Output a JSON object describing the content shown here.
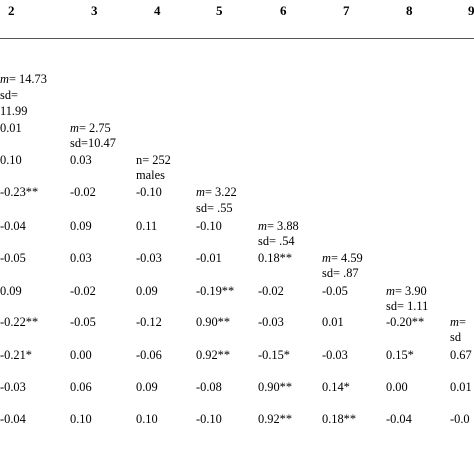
{
  "header": {
    "col2": "2",
    "col3": "3",
    "col4": "4",
    "col5": "5",
    "col6": "6",
    "col7": "7",
    "col8": "8",
    "col9": "9"
  },
  "cells": {
    "r1": {
      "c2_m_label": "m",
      "c2_m_val": "= 14.73",
      "c2_sd_label": "sd=",
      "c2_sd_val": "11.99"
    },
    "r2": {
      "c2": "0.01",
      "c3_m_label": "m",
      "c3_m_val": "= 2.75",
      "c3_sd": "sd=10.47"
    },
    "r3": {
      "c2": "0.10",
      "c3": "0.03",
      "c4_line1": "n= 252",
      "c4_line2": "males"
    },
    "r4": {
      "c2": "-0.23**",
      "c3": "-0.02",
      "c4": "-0.10",
      "c5_m_label": "m",
      "c5_m_val": "= 3.22",
      "c5_sd": "sd= .55"
    },
    "r5": {
      "c2": "-0.04",
      "c3": "0.09",
      "c4": "0.11",
      "c5": "-0.10",
      "c6_m_label": "m",
      "c6_m_val": "= 3.88",
      "c6_sd": "sd= .54"
    },
    "r6": {
      "c2": "-0.05",
      "c3": "0.03",
      "c4": "-0.03",
      "c5": "-0.01",
      "c6": "0.18**",
      "c7_m_label": "m",
      "c7_m_val": "= 4.59",
      "c7_sd": "sd= .87"
    },
    "r7": {
      "c2": "0.09",
      "c3": "-0.02",
      "c4": "0.09",
      "c5": "-0.19**",
      "c6": "-0.02",
      "c7": "-0.05",
      "c8_m_label": "m",
      "c8_m_val": "= 3.90",
      "c8_sd": "sd= 1.11"
    },
    "r8": {
      "c2": "-0.22**",
      "c3": "-0.05",
      "c4": "-0.12",
      "c5": "0.90**",
      "c6": "-0.03",
      "c7": "0.01",
      "c8": "-0.20**",
      "c9_m_label": "m",
      "c9_m_val": "=",
      "c9_sd": "sd"
    },
    "r9": {
      "c2": "-0.21*",
      "c3": "0.00",
      "c4": "-0.06",
      "c5": "0.92**",
      "c6": "-0.15*",
      "c7": "-0.03",
      "c8": "0.15*",
      "c9": "0.67"
    },
    "r10": {
      "c2": "-0.03",
      "c3": "0.06",
      "c4": "0.09",
      "c5": "-0.08",
      "c6": "0.90**",
      "c7": "0.14*",
      "c8": "0.00",
      "c9": "0.01"
    },
    "r11": {
      "c2": "-0.04",
      "c3": "0.10",
      "c4": "0.10",
      "c5": "-0.10",
      "c6": "0.92**",
      "c7": "0.18**",
      "c8": "-0.04",
      "c9": "-0.0"
    }
  }
}
